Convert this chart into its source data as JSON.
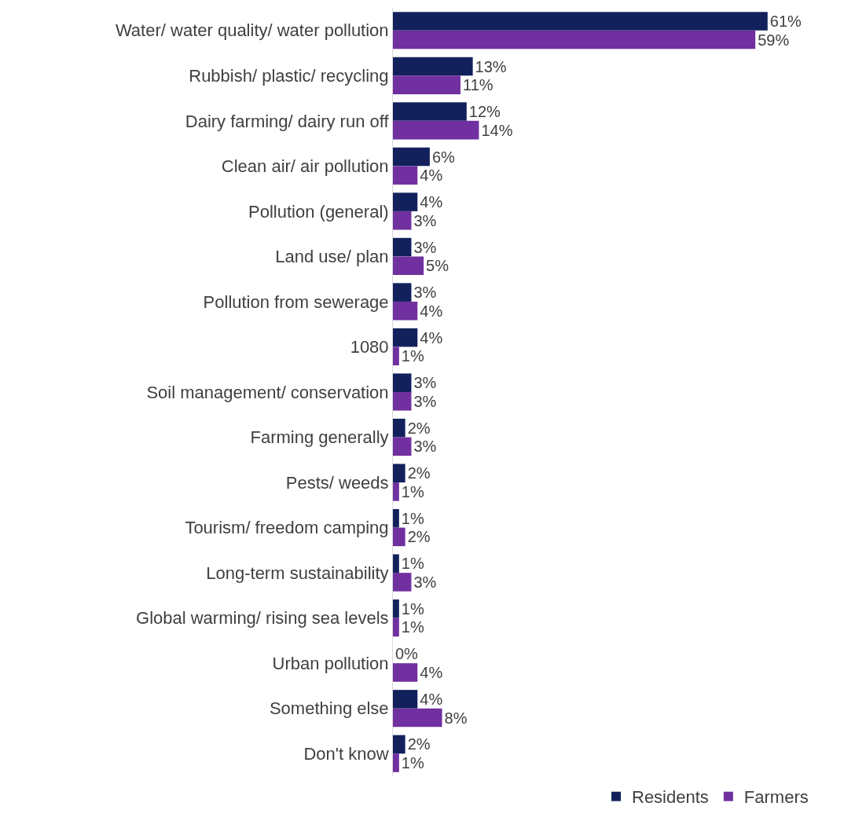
{
  "chart_data": {
    "type": "bar",
    "orientation": "horizontal",
    "categories": [
      "Water/ water quality/ water pollution",
      "Rubbish/ plastic/ recycling",
      "Dairy farming/ dairy run off",
      "Clean air/ air pollution",
      "Pollution (general)",
      "Land use/ plan",
      "Pollution from sewerage",
      "1080",
      "Soil management/ conservation",
      "Farming generally",
      "Pests/ weeds",
      "Tourism/ freedom camping",
      "Long-term sustainability",
      "Global warming/ rising sea levels",
      "Urban pollution",
      "Something else",
      "Don't know"
    ],
    "series": [
      {
        "name": "Residents",
        "color": "#12215c",
        "values": [
          61,
          13,
          12,
          6,
          4,
          3,
          3,
          4,
          3,
          2,
          2,
          1,
          1,
          1,
          0,
          4,
          2
        ],
        "value_labels": [
          "61%",
          "13%",
          "12%",
          "6%",
          "4%",
          "3%",
          "3%",
          "4%",
          "3%",
          "2%",
          "2%",
          "1%",
          "1%",
          "1%",
          "0%",
          "4%",
          "2%"
        ]
      },
      {
        "name": "Farmers",
        "color": "#7030a0",
        "values": [
          59,
          11,
          14,
          4,
          3,
          5,
          4,
          1,
          3,
          3,
          1,
          2,
          3,
          1,
          4,
          8,
          1
        ],
        "value_labels": [
          "59%",
          "11%",
          "14%",
          "4%",
          "3%",
          "5%",
          "4%",
          "1%",
          "3%",
          "3%",
          "1%",
          "2%",
          "3%",
          "1%",
          "4%",
          "8%",
          "1%"
        ]
      }
    ],
    "legend": "bottom right"
  }
}
